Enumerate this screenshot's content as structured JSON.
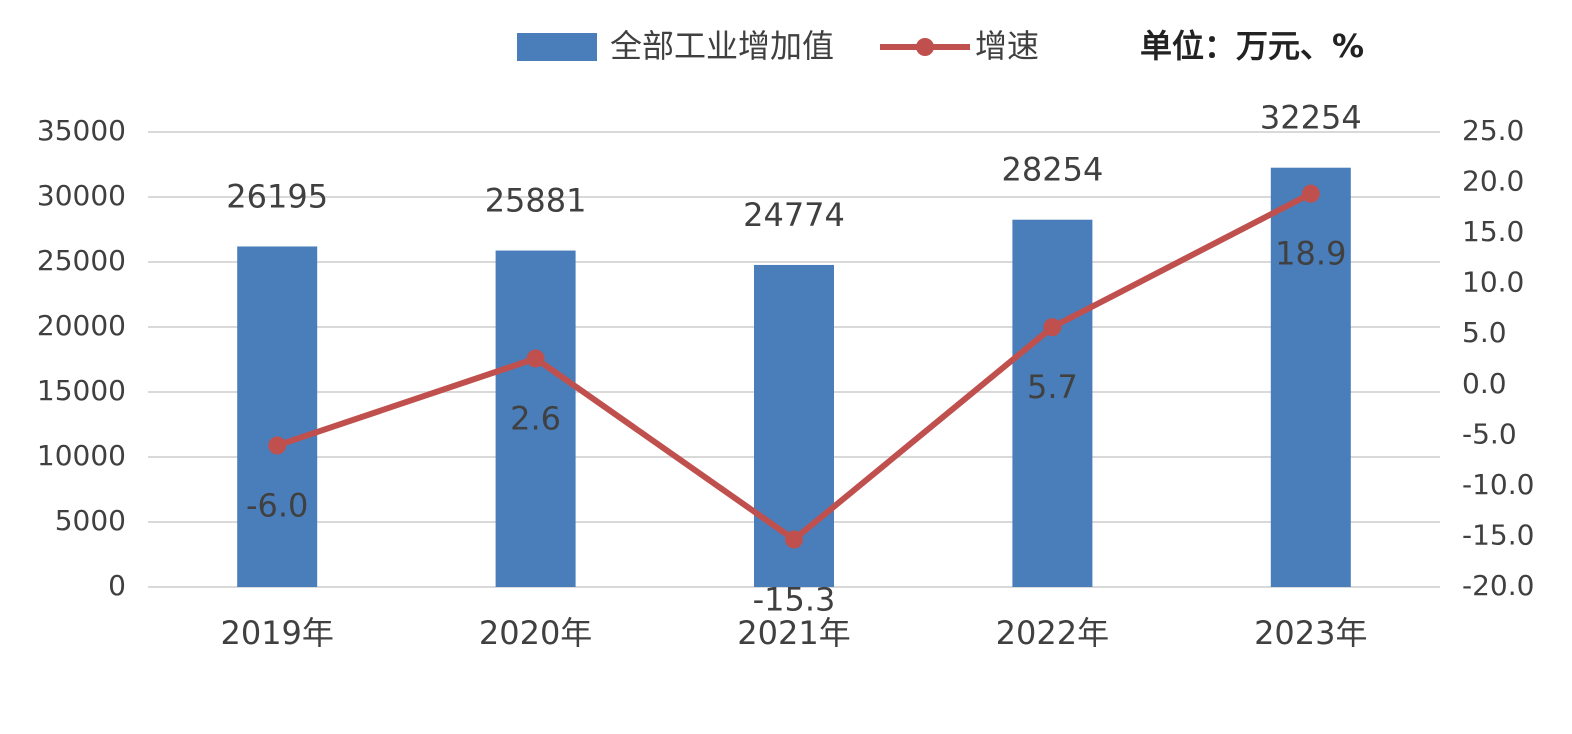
{
  "chart_data": {
    "type": "bar-line",
    "annotation": "单位：万元、%",
    "categories": [
      "2019年",
      "2020年",
      "2021年",
      "2022年",
      "2023年"
    ],
    "series": [
      {
        "name": "全部工业增加值",
        "type": "bar",
        "color": "#4a7ebb",
        "values": [
          26195,
          25881,
          24774,
          28254,
          32254
        ]
      },
      {
        "name": "增速",
        "type": "line",
        "axis": "y2",
        "color": "#c0504d",
        "values": [
          -6.0,
          2.6,
          -15.3,
          5.7,
          18.9
        ],
        "value_labels": [
          "-6.0",
          "2.6",
          "-15.3",
          "5.7",
          "18.9"
        ]
      }
    ],
    "ylim": [
      0,
      35000
    ],
    "yticks": [
      0,
      5000,
      10000,
      15000,
      20000,
      25000,
      30000,
      35000
    ],
    "y2lim": [
      -20,
      25
    ],
    "y2ticks": [
      {
        "value": -20,
        "label": "-20.0"
      },
      {
        "value": -15,
        "label": "-15.0"
      },
      {
        "value": -10,
        "label": "-10.0"
      },
      {
        "value": -5,
        "label": "-5.0"
      },
      {
        "value": 0,
        "label": "0.0"
      },
      {
        "value": 5,
        "label": "5.0"
      },
      {
        "value": 10,
        "label": "10.0"
      },
      {
        "value": 15,
        "label": "15.0"
      },
      {
        "value": 20,
        "label": "20.0"
      },
      {
        "value": 25,
        "label": "25.0"
      }
    ],
    "grid": true
  }
}
